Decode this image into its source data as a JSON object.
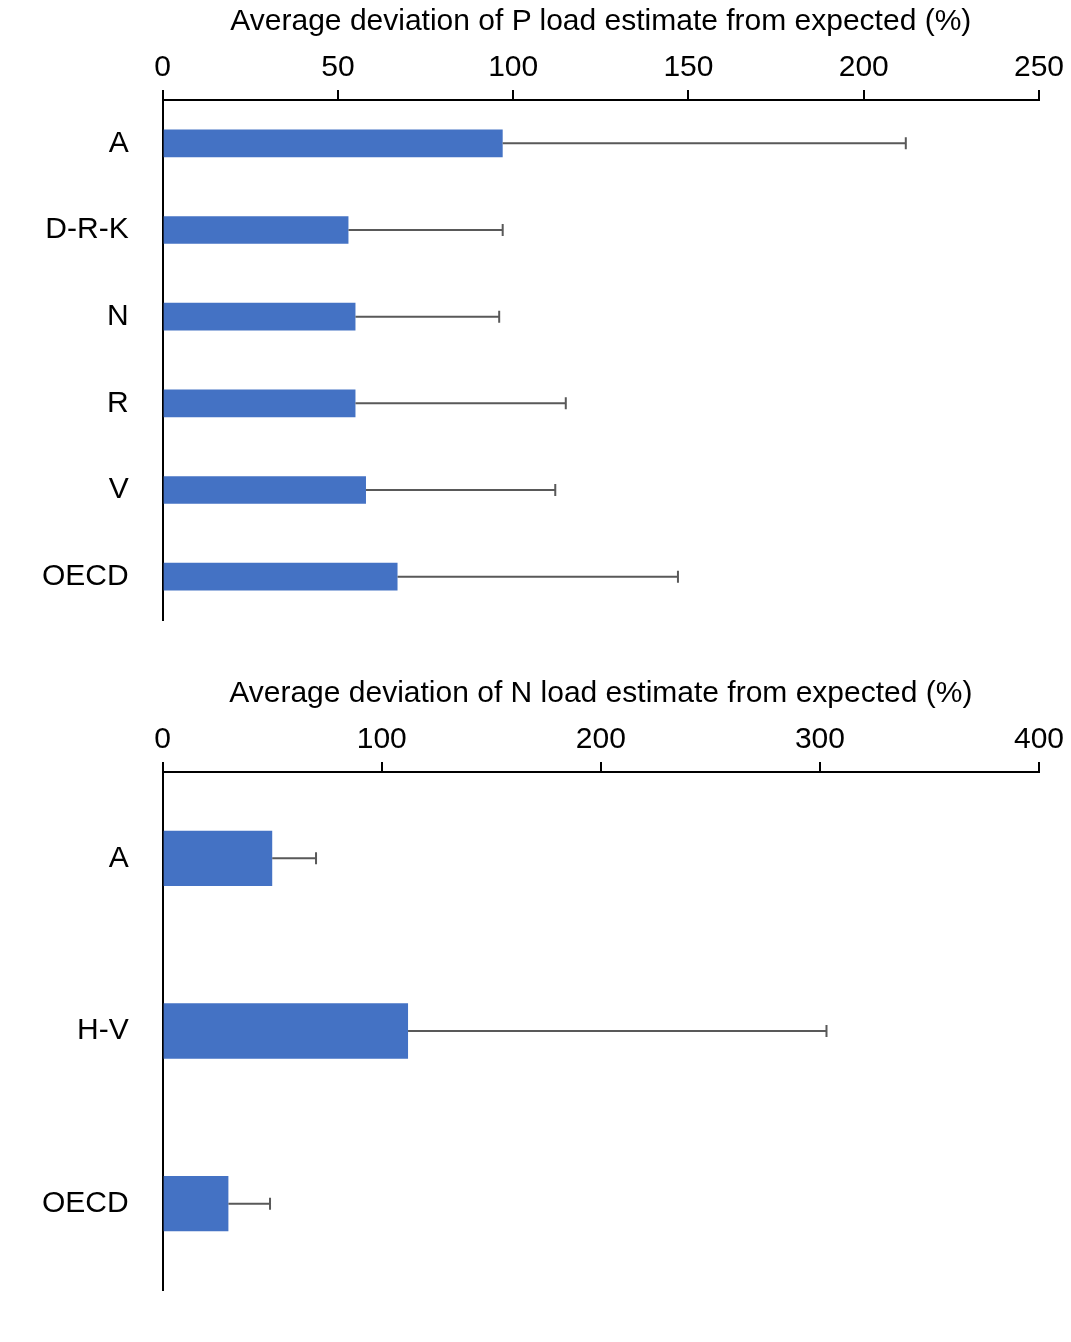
{
  "chart_data": [
    {
      "type": "bar",
      "orientation": "horizontal",
      "xlabel": "Average deviation of P load estimate from expected (%)",
      "categories": [
        "A",
        "D-R-K",
        "N",
        "R",
        "V",
        "OECD"
      ],
      "values": [
        97,
        53,
        55,
        55,
        58,
        67
      ],
      "color": "#4472c4",
      "errors": [
        [
          97,
          212
        ],
        [
          53,
          97
        ],
        [
          55,
          96
        ],
        [
          55,
          115
        ],
        [
          58,
          112
        ],
        [
          67,
          147
        ]
      ],
      "xlim": [
        0,
        250
      ],
      "xticks": [
        0,
        50,
        100,
        150,
        200,
        250
      ],
      "grid": false,
      "legend": false
    },
    {
      "type": "bar",
      "orientation": "horizontal",
      "xlabel": "Average deviation of N load estimate from expected (%)",
      "categories": [
        "A",
        "H-V",
        "OECD"
      ],
      "values": [
        50,
        112,
        30
      ],
      "color": "#4472c4",
      "errors": [
        [
          50,
          70
        ],
        [
          112,
          303
        ],
        [
          30,
          49
        ]
      ],
      "xlim": [
        0,
        400
      ],
      "xticks": [
        0,
        100,
        200,
        300,
        400
      ],
      "grid": false,
      "legend": false
    }
  ]
}
